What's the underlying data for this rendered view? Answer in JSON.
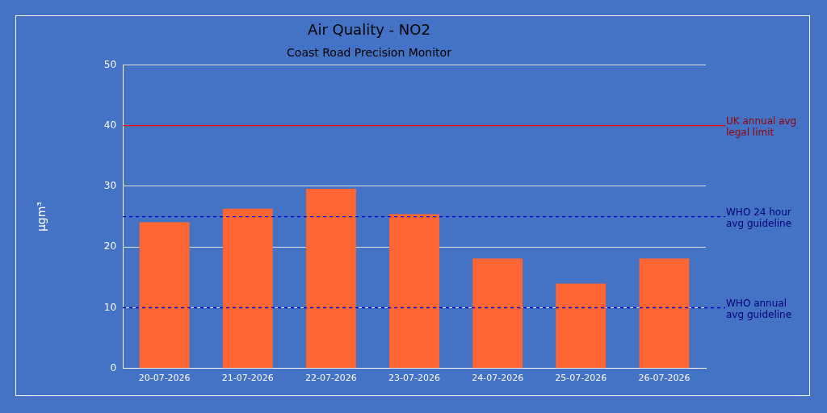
{
  "chart_data": {
    "type": "bar",
    "title": "Air Quality - NO2",
    "subtitle": "Coast Road Precision Monitor",
    "ylabel": "µgm³",
    "categories": [
      "20-07-2026",
      "21-07-2026",
      "22-07-2026",
      "23-07-2026",
      "24-07-2026",
      "25-07-2026",
      "26-07-2026"
    ],
    "values": [
      24.1,
      26.3,
      29.6,
      25.4,
      18.1,
      14.0,
      18.1
    ],
    "color": "#ff6633",
    "ylim": [
      0,
      50
    ],
    "yticks": [
      0,
      10,
      20,
      30,
      40,
      50
    ],
    "grid": "y",
    "legend": false,
    "ref_lines": [
      {
        "axis": "y",
        "value": 40,
        "label": "UK annual avg legal limit",
        "color": "#ff0000",
        "line_style": "solid"
      },
      {
        "axis": "y",
        "value": 25,
        "label": "WHO 24 hour avg guideline",
        "color": "#0000cc",
        "line_style": "dashed"
      },
      {
        "axis": "y",
        "value": 10,
        "label": "WHO annual avg guideline",
        "color": "#0000cc",
        "line_style": "dashed"
      }
    ]
  }
}
